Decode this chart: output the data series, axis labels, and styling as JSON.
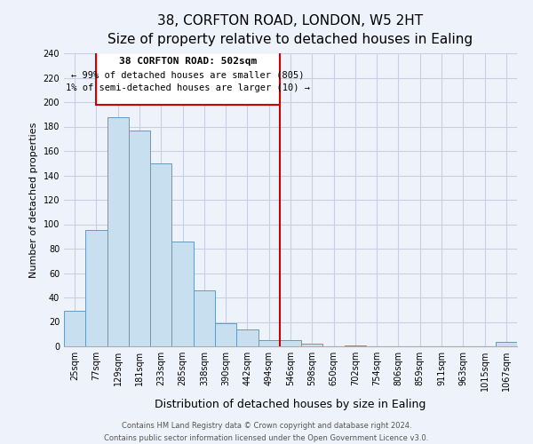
{
  "title": "38, CORFTON ROAD, LONDON, W5 2HT",
  "subtitle": "Size of property relative to detached houses in Ealing",
  "xlabel": "Distribution of detached houses by size in Ealing",
  "ylabel": "Number of detached properties",
  "bar_labels": [
    "25sqm",
    "77sqm",
    "129sqm",
    "181sqm",
    "233sqm",
    "285sqm",
    "338sqm",
    "390sqm",
    "442sqm",
    "494sqm",
    "546sqm",
    "598sqm",
    "650sqm",
    "702sqm",
    "754sqm",
    "806sqm",
    "859sqm",
    "911sqm",
    "963sqm",
    "1015sqm",
    "1067sqm"
  ],
  "bar_values": [
    29,
    95,
    188,
    177,
    150,
    86,
    46,
    19,
    14,
    5,
    5,
    2,
    0,
    1,
    0,
    0,
    0,
    0,
    0,
    0,
    4
  ],
  "bar_color": "#c8dff0",
  "bar_edge_color": "#6699bb",
  "vline_x": 10.0,
  "vline_color": "#cc0000",
  "annotation_title": "38 CORFTON ROAD: 502sqm",
  "annotation_line1": "← 99% of detached houses are smaller (805)",
  "annotation_line2": "1% of semi-detached houses are larger (10) →",
  "annotation_box_color": "#ffffff",
  "annotation_box_edge": "#cc0000",
  "ylim": [
    0,
    240
  ],
  "yticks": [
    0,
    20,
    40,
    60,
    80,
    100,
    120,
    140,
    160,
    180,
    200,
    220,
    240
  ],
  "footer_line1": "Contains HM Land Registry data © Crown copyright and database right 2024.",
  "footer_line2": "Contains public sector information licensed under the Open Government Licence v3.0.",
  "bg_color": "#eef2fb",
  "grid_color": "#c8cfe0",
  "title_fontsize": 11,
  "subtitle_fontsize": 9,
  "xlabel_fontsize": 9,
  "ylabel_fontsize": 8,
  "tick_fontsize": 7,
  "footer_fontsize": 6
}
